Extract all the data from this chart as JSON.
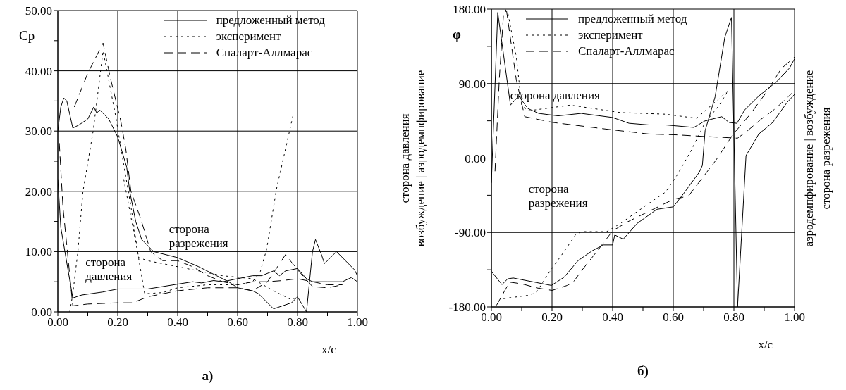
{
  "chart_data": [
    {
      "type": "line",
      "title": "а)",
      "xlabel": "x/c",
      "ylabel": "Cp",
      "xlim": [
        0,
        1
      ],
      "ylim": [
        0,
        50
      ],
      "xticks": [
        {
          "value": 0,
          "label": "0.00"
        },
        {
          "value": 0.1,
          "label": null
        },
        {
          "value": 0.2,
          "label": "0.20"
        },
        {
          "value": 0.3,
          "label": null
        },
        {
          "value": 0.4,
          "label": "0.40"
        },
        {
          "value": 0.5,
          "label": null
        },
        {
          "value": 0.6,
          "label": "0.60"
        },
        {
          "value": 0.7,
          "label": null
        },
        {
          "value": 0.8,
          "label": "0.80"
        },
        {
          "value": 0.9,
          "label": null
        },
        {
          "value": 1,
          "label": "1.00"
        }
      ],
      "yticks": [
        {
          "value": 0,
          "label": "0.00"
        },
        {
          "value": 5,
          "label": null
        },
        {
          "value": 10,
          "label": "10.00"
        },
        {
          "value": 15,
          "label": null
        },
        {
          "value": 20,
          "label": "20.00"
        },
        {
          "value": 25,
          "label": null
        },
        {
          "value": 30,
          "label": "30.00"
        },
        {
          "value": 35,
          "label": null
        },
        {
          "value": 40,
          "label": "40.00"
        },
        {
          "value": 45,
          "label": null
        },
        {
          "value": 50,
          "label": "50.00"
        }
      ],
      "grid": true,
      "legend": "top right",
      "marker": "none",
      "annotations": [
        "сторона\nразрежения",
        "сторона\nдавления"
      ],
      "series": [
        {
          "name": "предложенный метод",
          "color": "#000000",
          "line_style": "solid",
          "x": [
            0,
            0.01,
            0.02,
            0.03,
            0.05,
            0.07,
            0.1,
            0.12,
            0.13,
            0.14,
            0.17,
            0.2,
            0.23,
            0.24,
            0.26,
            0.28,
            0.32,
            0.4,
            0.47,
            0.53,
            0.57,
            0.6,
            0.65,
            0.67,
            0.7,
            0.72,
            0.75,
            0.78,
            0.8,
            0.83,
            0.85,
            0.86,
            0.88,
            0.89,
            0.91,
            0.93,
            0.96,
            0.99,
            1.0
          ],
          "values": [
            30,
            34,
            35.5,
            35,
            30.5,
            31,
            32,
            34,
            33,
            33.5,
            32,
            29,
            24,
            20,
            15,
            12,
            10,
            9,
            7.5,
            6,
            5,
            4,
            3.5,
            3,
            1.5,
            0.5,
            1,
            1.5,
            2.5,
            0,
            10,
            12,
            9.5,
            8,
            9,
            10,
            8.5,
            7,
            6
          ]
        },
        {
          "color": "#000000",
          "line_style": "solid",
          "x": [
            0,
            0.01,
            0.05,
            0.08,
            0.15,
            0.2,
            0.3,
            0.35,
            0.4,
            0.45,
            0.48,
            0.52,
            0.55,
            0.6,
            0.65,
            0.68,
            0.72,
            0.74,
            0.76,
            0.8,
            0.83,
            0.85,
            0.9,
            0.95,
            0.98,
            1.0
          ],
          "values": [
            22,
            14,
            2.3,
            2.8,
            3.3,
            3.8,
            3.8,
            4.2,
            4.6,
            5,
            4.8,
            5.2,
            5,
            5.5,
            6,
            6,
            6.8,
            6,
            6.8,
            7.2,
            5.5,
            5,
            5,
            5,
            5.7,
            5
          ]
        },
        {
          "name": "эксперимент",
          "color": "#000000",
          "line_style": "dotted",
          "x": [
            0.04,
            0.05,
            0.067,
            0.084,
            0.118,
            0.151,
            0.164,
            0.193,
            0.218,
            0.244,
            0.27,
            0.29,
            0.35,
            0.4,
            0.5,
            0.6,
            0.65,
            0.676,
            0.697,
            0.73,
            0.786
          ],
          "values": [
            0,
            3,
            10,
            20,
            30,
            43.3,
            40,
            32.5,
            25,
            17.5,
            8.8,
            3,
            3.2,
            4,
            4.5,
            4.5,
            5,
            6.7,
            10.4,
            20.4,
            32.8
          ]
        },
        {
          "color": "#000000",
          "line_style": "dotted",
          "x": [
            0.22,
            0.27,
            0.3,
            0.35,
            0.45,
            0.55,
            0.65,
            0.72,
            0.78,
            0.8
          ],
          "values": [
            22,
            9,
            8.5,
            8,
            7,
            6,
            5.5,
            3.5,
            2,
            2.5
          ]
        },
        {
          "name": "Спаларт-Аллмарас",
          "color": "#000000",
          "line_style": "dashed",
          "x": [
            0.055,
            0.1,
            0.151,
            0.176,
            0.21,
            0.227,
            0.244,
            0.277,
            0.31,
            0.35,
            0.4,
            0.45,
            0.5,
            0.55,
            0.6,
            0.65,
            0.7,
            0.75,
            0.8,
            0.85,
            0.9,
            0.95
          ],
          "values": [
            34,
            39.6,
            44.6,
            38.7,
            31.7,
            27,
            20,
            15.4,
            10,
            8.5,
            8.5,
            7.5,
            6,
            5,
            4.5,
            5,
            5,
            5.2,
            5.5,
            5,
            4.5,
            4.5
          ]
        },
        {
          "color": "#000000",
          "line_style": "dashed",
          "x": [
            0.005,
            0.017,
            0.046,
            0.05,
            0.1,
            0.2,
            0.25,
            0.3,
            0.35,
            0.4,
            0.5,
            0.6,
            0.65,
            0.7,
            0.76,
            0.8,
            0.85,
            0.9,
            0.95
          ],
          "values": [
            28,
            17.5,
            3,
            1,
            1.3,
            1.5,
            1.5,
            2.5,
            3,
            3.5,
            4,
            4,
            3.5,
            5,
            9.5,
            7,
            4.2,
            4,
            4.5
          ]
        }
      ]
    },
    {
      "type": "line",
      "title": "б)",
      "xlabel": "x/c",
      "ylabel": "φ",
      "xlim": [
        0,
        1
      ],
      "ylim": [
        -180,
        180
      ],
      "xticks": [
        {
          "value": 0,
          "label": "0.00"
        },
        {
          "value": 0.1,
          "label": null
        },
        {
          "value": 0.2,
          "label": "0.20"
        },
        {
          "value": 0.3,
          "label": null
        },
        {
          "value": 0.4,
          "label": "0.40"
        },
        {
          "value": 0.5,
          "label": null
        },
        {
          "value": 0.6,
          "label": "0.60"
        },
        {
          "value": 0.7,
          "label": null
        },
        {
          "value": 0.8,
          "label": "0.80"
        },
        {
          "value": 0.9,
          "label": null
        },
        {
          "value": 1,
          "label": "1.00"
        }
      ],
      "yticks": [
        {
          "value": -180,
          "label": "-180.00"
        },
        {
          "value": -135,
          "label": null
        },
        {
          "value": -90,
          "label": "-90.00"
        },
        {
          "value": -45,
          "label": null
        },
        {
          "value": 0,
          "label": "0.00"
        },
        {
          "value": 45,
          "label": null
        },
        {
          "value": 90,
          "label": "90.00"
        },
        {
          "value": 135,
          "label": null
        },
        {
          "value": 180,
          "label": "180.00"
        }
      ],
      "grid": true,
      "legend": "top",
      "marker": "none",
      "annotations": [
        "сторона давления",
        "сторона\nразрежения",
        "сторона давления",
        "возбуждение | аэродемпфирование",
        "аэродемпфирование | возбуждение",
        "сторона разрежения"
      ],
      "series": [
        {
          "name": "предложенный метод",
          "color": "#000000",
          "line_style": "solid",
          "x": [
            0,
            0.021,
            0.063,
            0.09,
            0.12,
            0.156,
            0.22,
            0.296,
            0.4,
            0.454,
            0.52,
            0.575,
            0.668,
            0.705,
            0.76,
            0.784,
            0.81,
            0.835,
            0.882,
            0.94,
            0.984,
            1.0
          ],
          "values": [
            -30,
            176,
            64,
            75,
            60,
            54,
            51,
            54,
            49,
            42,
            40,
            40,
            37,
            45,
            50,
            43,
            42,
            58,
            75,
            92,
            109,
            120
          ]
        },
        {
          "color": "#000000",
          "line_style": "solid",
          "x": [
            0,
            0.035,
            0.054,
            0.072,
            0.128,
            0.198,
            0.24,
            0.286,
            0.333,
            0.37,
            0.4,
            0.407,
            0.435,
            0.481,
            0.546,
            0.6,
            0.63,
            0.686,
            0.696,
            0.705,
            0.738,
            0.77,
            0.792,
            0.812,
            0.84,
            0.882,
            0.928,
            0.975,
            1.0
          ],
          "values": [
            -137,
            -153,
            -146,
            -145,
            -149,
            -154,
            -144,
            -124,
            -112,
            -105,
            -105,
            -93,
            -98,
            -79,
            -62,
            -59,
            -45,
            -17,
            -9,
            33,
            74,
            146,
            170,
            -180,
            3,
            29,
            43,
            67,
            77
          ]
        },
        {
          "name": "эксперимент",
          "color": "#000000",
          "line_style": "dotted",
          "x": [
            0.045,
            0.054,
            0.082,
            0.1,
            0.12,
            0.26,
            0.426,
            0.575,
            0.677,
            0.714,
            0.78
          ],
          "values": [
            180,
            176,
            123,
            64,
            57,
            64,
            55,
            53,
            48,
            60,
            81
          ]
        },
        {
          "color": "#000000",
          "line_style": "dotted",
          "x": [
            0.04,
            0.12,
            0.147,
            0.193,
            0.24,
            0.277,
            0.296,
            0.38,
            0.426,
            0.519,
            0.575,
            0.612,
            0.659,
            0.705,
            0.752,
            0.78
          ],
          "values": [
            -170,
            -166,
            -163,
            -137,
            -113,
            -93,
            -89,
            -89,
            -79,
            -55,
            -41,
            -21,
            9,
            43,
            64,
            81
          ]
        },
        {
          "name": "Спаларт-Аллмарас",
          "color": "#000000",
          "line_style": "dashed",
          "x": [
            0.012,
            0.026,
            0.04,
            0.05,
            0.082,
            0.11,
            0.203,
            0.4,
            0.52,
            0.612,
            0.705,
            0.812,
            0.845,
            0.89,
            0.938,
            0.993
          ],
          "values": [
            -16,
            95,
            174,
            178,
            95,
            50,
            43,
            34,
            29,
            28,
            26,
            24,
            33,
            47,
            60,
            79
          ]
        },
        {
          "color": "#000000",
          "line_style": "dashed",
          "x": [
            0.017,
            0.06,
            0.1,
            0.15,
            0.2,
            0.25,
            0.27,
            0.3,
            0.35,
            0.4,
            0.45,
            0.5,
            0.6,
            0.65,
            0.742,
            0.798,
            0.854,
            0.91,
            0.956,
            1.0
          ],
          "values": [
            -178,
            -150,
            -152,
            -157,
            -160,
            -154,
            -150,
            -135,
            -112,
            -88,
            -77,
            -68,
            -50,
            -46,
            -2,
            29,
            53,
            81,
            108,
            122
          ]
        }
      ]
    }
  ]
}
